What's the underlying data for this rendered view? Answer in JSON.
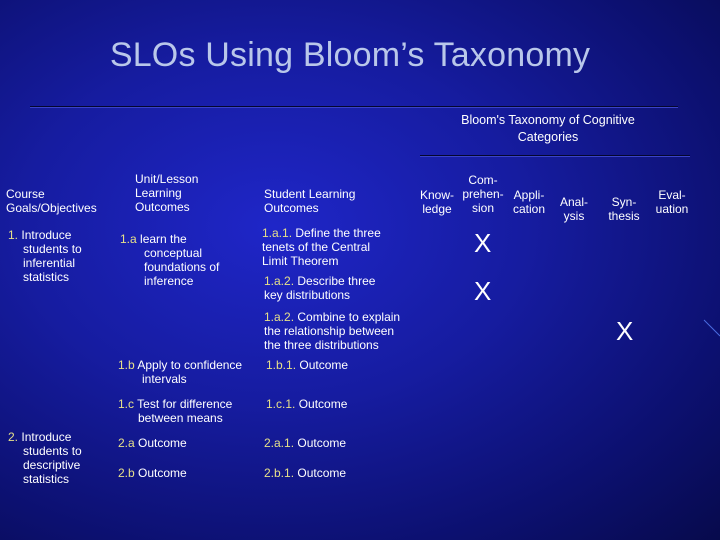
{
  "title": "SLOs Using Bloom’s Taxonomy",
  "bloom_header": {
    "line1": "Bloom's Taxonomy of Cognitive",
    "line2": "Categories"
  },
  "columns": {
    "course": [
      "Course",
      "Goals/Objectives"
    ],
    "unit": [
      "Unit/Lesson",
      "Learning",
      "Outcomes"
    ],
    "student": [
      "Student Learning",
      "Outcomes"
    ],
    "knowledge": [
      "Know-",
      "ledge"
    ],
    "comprehension": [
      "Com-",
      "prehen-",
      "sion"
    ],
    "application": [
      "Appli-",
      "cation"
    ],
    "analysis": [
      "Anal-",
      "ysis"
    ],
    "synthesis": [
      "Syn-",
      "thesis"
    ],
    "evaluation": [
      "Eval-",
      "uation"
    ]
  },
  "course_goals": [
    {
      "num": "1.",
      "lines": [
        "Introduce",
        "students to",
        "inferential",
        "statistics"
      ]
    },
    {
      "num": "2.",
      "lines": [
        "Introduce",
        "students to",
        "descriptive",
        "statistics"
      ]
    }
  ],
  "unit_outcomes": [
    {
      "num": "1.a",
      "lines": [
        "learn the",
        "conceptual",
        "foundations of",
        "inference"
      ]
    },
    {
      "num": "1.b",
      "lines": [
        "Apply to confidence",
        "intervals"
      ]
    },
    {
      "num": "1.c",
      "lines": [
        "Test for difference",
        "between means"
      ]
    },
    {
      "num": "2.a",
      "lines": [
        "Outcome"
      ]
    },
    {
      "num": "2.b",
      "lines": [
        "Outcome"
      ]
    }
  ],
  "student_outcomes": [
    {
      "num": "1.a.1.",
      "lines": [
        "Define the three",
        "tenets of the Central",
        "Limit Theorem"
      ]
    },
    {
      "num": "1.a.2.",
      "lines": [
        "Describe three",
        "key distributions"
      ]
    },
    {
      "num": "1.a.2.",
      "lines": [
        "Combine to explain",
        "the relationship between",
        "the three distributions"
      ]
    },
    {
      "num": "1.b.1.",
      "lines": [
        "Outcome"
      ]
    },
    {
      "num": "1.c.1.",
      "lines": [
        "Outcome"
      ]
    },
    {
      "num": "2.a.1.",
      "lines": [
        "Outcome"
      ]
    },
    {
      "num": "2.b.1.",
      "lines": [
        "Outcome"
      ]
    }
  ],
  "marks": [
    "X",
    "X",
    "X"
  ]
}
